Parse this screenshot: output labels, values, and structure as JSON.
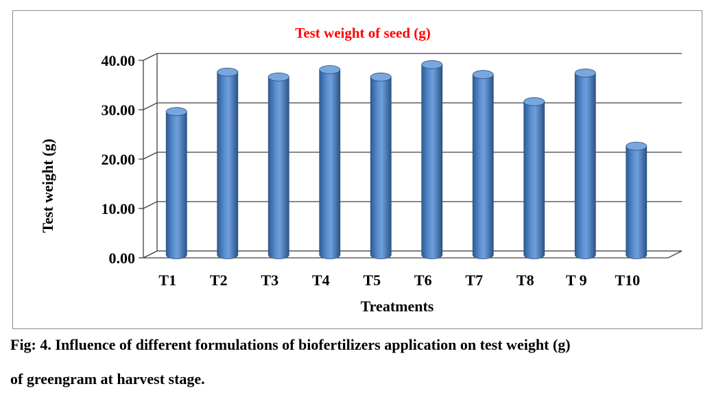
{
  "chart_data": {
    "type": "bar",
    "title": "Test weight  of seed (g)",
    "xlabel": "Treatments",
    "ylabel": "Test weight  (g)",
    "categories": [
      "T1",
      "T2",
      "T3",
      "T4",
      "T5",
      "T6",
      "T7",
      "T8",
      "T 9",
      "T10"
    ],
    "values": [
      29.0,
      37.0,
      36.0,
      37.5,
      36.0,
      38.5,
      36.5,
      31.0,
      36.8,
      22.0
    ],
    "y_ticks": [
      "0.00",
      "10.00",
      "20.00",
      "30.00",
      "40.00"
    ],
    "ylim": [
      0,
      40
    ],
    "grid": true,
    "legend": "none",
    "bar_color": "#4a7ebb",
    "title_color": "#ff0000",
    "style": "3d-cylinder"
  },
  "caption": {
    "line1": "Fig: 4. Influence of different formulations of biofertilizers application on test weight (g)",
    "line2": "of greengram at harvest stage."
  }
}
